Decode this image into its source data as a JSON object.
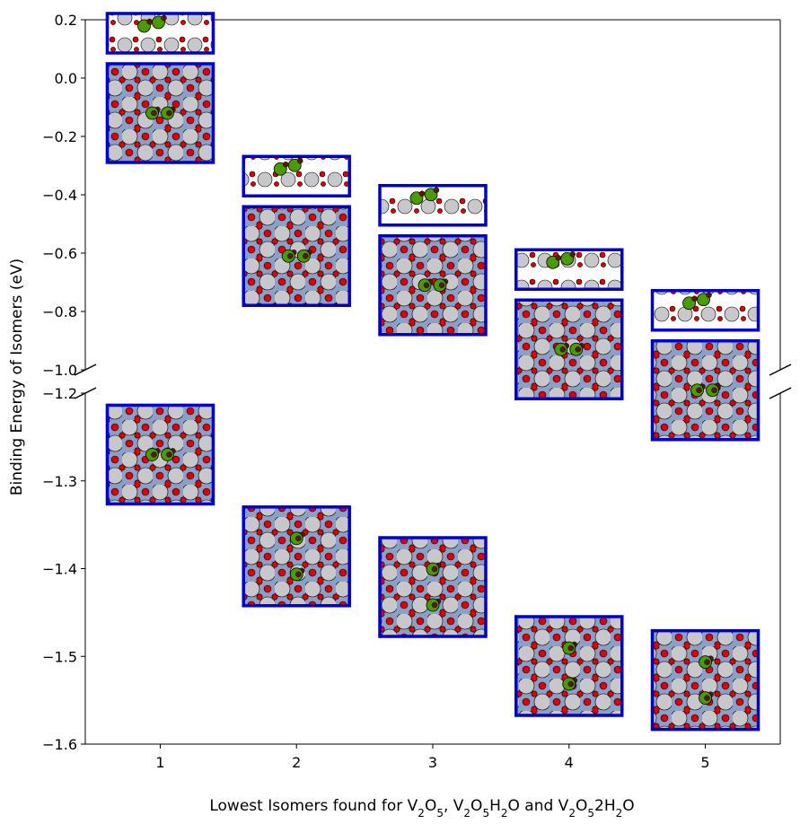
{
  "chart_data": {
    "type": "scatter",
    "xlabel_parts": [
      {
        "t": "Lowest Isomers found for V"
      },
      {
        "t": "2",
        "sub": true
      },
      {
        "t": "O"
      },
      {
        "t": "5",
        "sub": true
      },
      {
        "t": ", V"
      },
      {
        "t": "2",
        "sub": true
      },
      {
        "t": "O"
      },
      {
        "t": "5",
        "sub": true
      },
      {
        "t": "H"
      },
      {
        "t": "2",
        "sub": true
      },
      {
        "t": "O and V"
      },
      {
        "t": "2",
        "sub": true
      },
      {
        "t": "O"
      },
      {
        "t": "5",
        "sub": true
      },
      {
        "t": "2H"
      },
      {
        "t": "2",
        "sub": true
      },
      {
        "t": "O"
      }
    ],
    "ylabel": "Binding Energy of Isomers (eV)",
    "x_ticks": [
      "1",
      "2",
      "3",
      "4",
      "5"
    ],
    "xlim": [
      0.45,
      5.55
    ],
    "broken_y_axis": true,
    "upper_panel": {
      "ylim": [
        -1.0,
        0.2
      ],
      "y_ticks": [
        "0.2",
        "0.0",
        "−0.2",
        "−0.4",
        "−0.6",
        "−0.8",
        "−1.0"
      ],
      "tick_values": [
        0.2,
        0.0,
        -0.2,
        -0.4,
        -0.6,
        -0.8,
        -1.0
      ]
    },
    "lower_panel": {
      "ylim": [
        -1.6,
        -1.2
      ],
      "y_ticks": [
        "−1.2",
        "−1.3",
        "−1.4",
        "−1.5",
        "−1.6"
      ],
      "tick_values": [
        -1.2,
        -1.3,
        -1.4,
        -1.5,
        -1.6
      ]
    },
    "marker_style": "inset structure images with blue frames",
    "upper_points": [
      {
        "x": 1,
        "y": -0.12
      },
      {
        "x": 2,
        "y": -0.61
      },
      {
        "x": 3,
        "y": -0.71
      },
      {
        "x": 4,
        "y": -0.93
      },
      {
        "x": 5,
        "y": -1.07
      }
    ],
    "lower_points": [
      {
        "x": 1,
        "y": -1.27
      },
      {
        "x": 2,
        "y": -1.386
      },
      {
        "x": 3,
        "y": -1.421
      },
      {
        "x": 4,
        "y": -1.511
      },
      {
        "x": 5,
        "y": -1.527
      }
    ],
    "colors": {
      "frame": "#0000cc",
      "surface_atom": "#c8c8cc",
      "oxygen": "#e00000",
      "vanadium": "#4a9a00",
      "hydrogen": "#5a1a00"
    }
  }
}
